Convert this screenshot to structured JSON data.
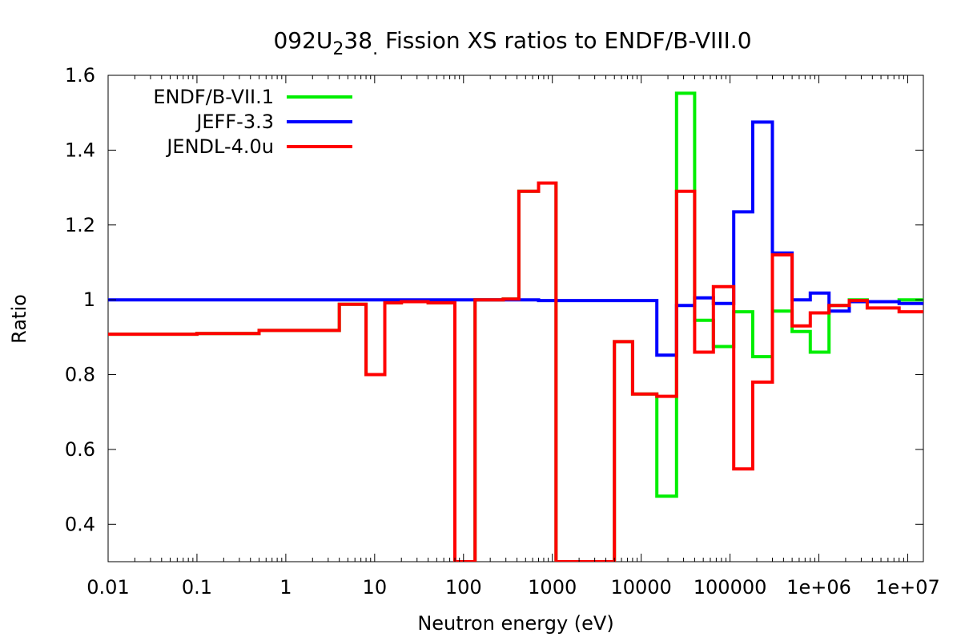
{
  "chart_data": {
    "type": "line",
    "title": {
      "prefix": "092U",
      "sub": "2",
      "suffix": "38",
      "sub2": ".",
      "rest": " Fission XS ratios to ENDF/B-VIII.0"
    },
    "xlabel": "Neutron energy (eV)",
    "ylabel": "Ratio",
    "xscale": "log",
    "xlim": [
      0.01,
      15000000
    ],
    "ylim": [
      0.3,
      1.6
    ],
    "xticks": [
      {
        "value": 0.01,
        "label": "0.01"
      },
      {
        "value": 0.1,
        "label": "0.1"
      },
      {
        "value": 1,
        "label": "1"
      },
      {
        "value": 10,
        "label": "10"
      },
      {
        "value": 100,
        "label": "100"
      },
      {
        "value": 1000,
        "label": "1000"
      },
      {
        "value": 10000,
        "label": "10000"
      },
      {
        "value": 100000,
        "label": "100000"
      },
      {
        "value": 1000000,
        "label": "1e+06"
      },
      {
        "value": 10000000,
        "label": "1e+07"
      }
    ],
    "yticks": [
      {
        "value": 0.4,
        "label": "0.4"
      },
      {
        "value": 0.6,
        "label": "0.6"
      },
      {
        "value": 0.8,
        "label": "0.8"
      },
      {
        "value": 1.0,
        "label": "1"
      },
      {
        "value": 1.2,
        "label": "1.2"
      },
      {
        "value": 1.4,
        "label": "1.4"
      },
      {
        "value": 1.6,
        "label": "1.6"
      }
    ],
    "grid": false,
    "legend_position": "top-left",
    "series": [
      {
        "name": "ENDF/B-VII.1",
        "color": "#00ee00",
        "steps": [
          [
            0.01,
            0.908
          ],
          [
            0.1,
            0.91
          ],
          [
            0.5,
            0.918
          ],
          [
            4,
            0.988
          ],
          [
            8,
            0.8
          ],
          [
            13,
            0.992
          ],
          [
            20,
            0.995
          ],
          [
            40,
            0.992
          ],
          [
            80,
            0.3
          ],
          [
            135,
            1.0
          ],
          [
            280,
            1.002
          ],
          [
            420,
            1.29
          ],
          [
            700,
            1.312
          ],
          [
            1100,
            0.3
          ],
          [
            5000,
            0.888
          ],
          [
            8000,
            0.748
          ],
          [
            15000,
            0.475
          ],
          [
            25000,
            1.552
          ],
          [
            40000,
            0.945
          ],
          [
            65000,
            0.875
          ],
          [
            110000,
            0.968
          ],
          [
            180000,
            0.848
          ],
          [
            300000,
            0.97
          ],
          [
            500000,
            0.915
          ],
          [
            800000,
            0.86
          ],
          [
            1300000,
            0.985
          ],
          [
            2200000,
            1.0
          ],
          [
            3500000,
            0.995
          ],
          [
            8000000,
            1.0
          ],
          [
            15000000,
            1.0
          ]
        ]
      },
      {
        "name": "JEFF-3.3",
        "color": "#0000ff",
        "steps": [
          [
            0.01,
            1.0
          ],
          [
            700,
            0.998
          ],
          [
            1100,
            0.998
          ],
          [
            15000,
            0.852
          ],
          [
            25000,
            0.985
          ],
          [
            40000,
            1.005
          ],
          [
            65000,
            0.99
          ],
          [
            110000,
            1.235
          ],
          [
            180000,
            1.475
          ],
          [
            300000,
            1.125
          ],
          [
            500000,
            1.0
          ],
          [
            800000,
            1.018
          ],
          [
            1300000,
            0.97
          ],
          [
            2200000,
            0.995
          ],
          [
            3500000,
            0.995
          ],
          [
            8000000,
            0.99
          ],
          [
            15000000,
            0.99
          ]
        ]
      },
      {
        "name": "JENDL-4.0u",
        "color": "#ff0000",
        "steps": [
          [
            0.01,
            0.908
          ],
          [
            0.1,
            0.91
          ],
          [
            0.5,
            0.918
          ],
          [
            4,
            0.988
          ],
          [
            8,
            0.8
          ],
          [
            13,
            0.992
          ],
          [
            20,
            0.995
          ],
          [
            40,
            0.992
          ],
          [
            80,
            0.3
          ],
          [
            135,
            1.0
          ],
          [
            280,
            1.002
          ],
          [
            420,
            1.29
          ],
          [
            700,
            1.312
          ],
          [
            1100,
            0.3
          ],
          [
            5000,
            0.888
          ],
          [
            8000,
            0.748
          ],
          [
            15000,
            0.742
          ],
          [
            25000,
            1.29
          ],
          [
            40000,
            0.86
          ],
          [
            65000,
            1.035
          ],
          [
            110000,
            0.548
          ],
          [
            180000,
            0.78
          ],
          [
            300000,
            1.12
          ],
          [
            500000,
            0.93
          ],
          [
            800000,
            0.965
          ],
          [
            1300000,
            0.985
          ],
          [
            2200000,
            0.998
          ],
          [
            3500000,
            0.978
          ],
          [
            8000000,
            0.968
          ],
          [
            15000000,
            0.968
          ]
        ]
      }
    ]
  }
}
